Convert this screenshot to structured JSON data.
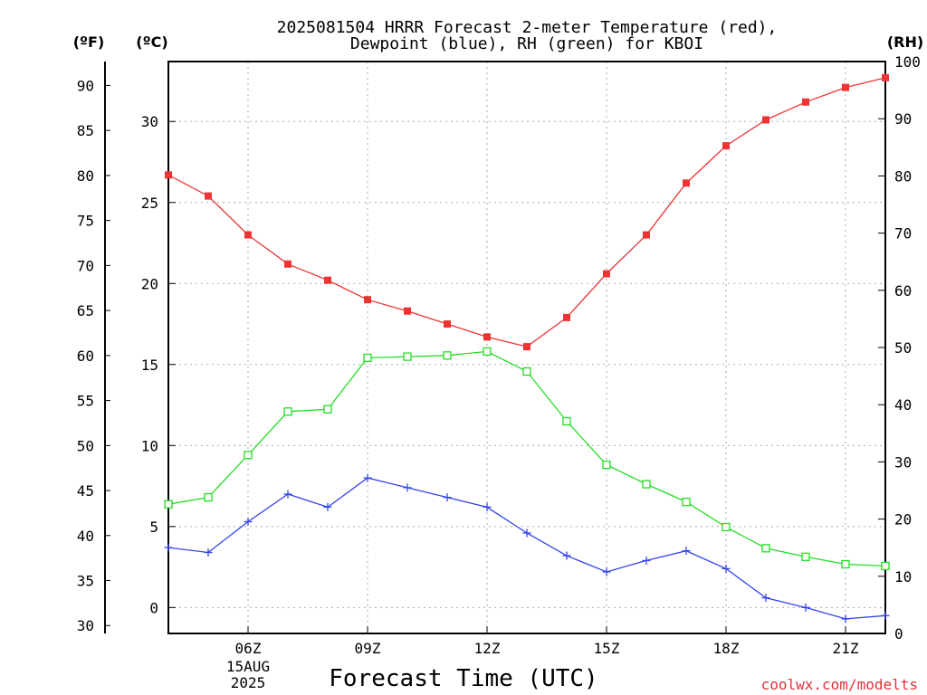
{
  "chart_data": {
    "type": "line",
    "title_line1": "2025081504 HRRR Forecast 2-meter Temperature (red),",
    "title_line2": "Dewpoint (blue), RH (green) for KBOI",
    "unit_f": "(ºF)",
    "unit_c": "(ºC)",
    "unit_rh": "(RH)",
    "xlabel": "Forecast Time (UTC)",
    "credit": "coolwx.com/modelts",
    "date_day": "15AUG",
    "date_year": "2025",
    "x_hours": [
      4,
      5,
      6,
      7,
      8,
      9,
      10,
      11,
      12,
      13,
      14,
      15,
      16,
      17,
      18,
      19,
      20,
      21,
      22
    ],
    "x_range": [
      4,
      22
    ],
    "x_ticks": [
      {
        "hour": 6,
        "label": "06Z"
      },
      {
        "hour": 9,
        "label": "09Z"
      },
      {
        "hour": 12,
        "label": "12Z"
      },
      {
        "hour": 15,
        "label": "15Z"
      },
      {
        "hour": 18,
        "label": "18Z"
      },
      {
        "hour": 21,
        "label": "21Z"
      }
    ],
    "temp_axis_c": {
      "range": [
        -1.6,
        33.7
      ],
      "ticks": [
        0,
        5,
        10,
        15,
        20,
        25,
        30
      ]
    },
    "temp_axis_f": {
      "ticks": [
        30,
        35,
        40,
        45,
        50,
        55,
        60,
        65,
        70,
        75,
        80,
        85,
        90
      ]
    },
    "rh_axis": {
      "range": [
        0,
        100
      ],
      "ticks": [
        0,
        10,
        20,
        30,
        40,
        50,
        60,
        70,
        80,
        90,
        100
      ]
    },
    "grid": true,
    "series": [
      {
        "key": "temperature",
        "units": "C",
        "color": "#ee3333",
        "marker": "filled-square",
        "values": [
          26.7,
          25.4,
          23.0,
          21.2,
          20.2,
          19.0,
          18.3,
          17.5,
          16.7,
          16.1,
          17.9,
          20.6,
          23.0,
          26.2,
          28.5,
          30.1,
          31.2,
          32.1,
          32.7
        ]
      },
      {
        "key": "dewpoint",
        "units": "C",
        "color": "#3344ee",
        "marker": "plus",
        "values": [
          3.7,
          3.4,
          5.3,
          7.0,
          6.2,
          8.0,
          7.4,
          6.8,
          6.2,
          4.6,
          3.2,
          2.2,
          2.9,
          3.5,
          2.4,
          0.6,
          0.0,
          -0.7,
          -0.5
        ]
      },
      {
        "key": "rh",
        "units": "%",
        "color": "#22dd22",
        "marker": "open-square",
        "values": [
          22.6,
          23.8,
          31.2,
          38.8,
          39.2,
          48.2,
          48.4,
          48.6,
          49.3,
          45.8,
          37.1,
          29.5,
          26.1,
          23.0,
          18.6,
          14.9,
          13.4,
          12.1,
          11.8
        ]
      }
    ]
  }
}
